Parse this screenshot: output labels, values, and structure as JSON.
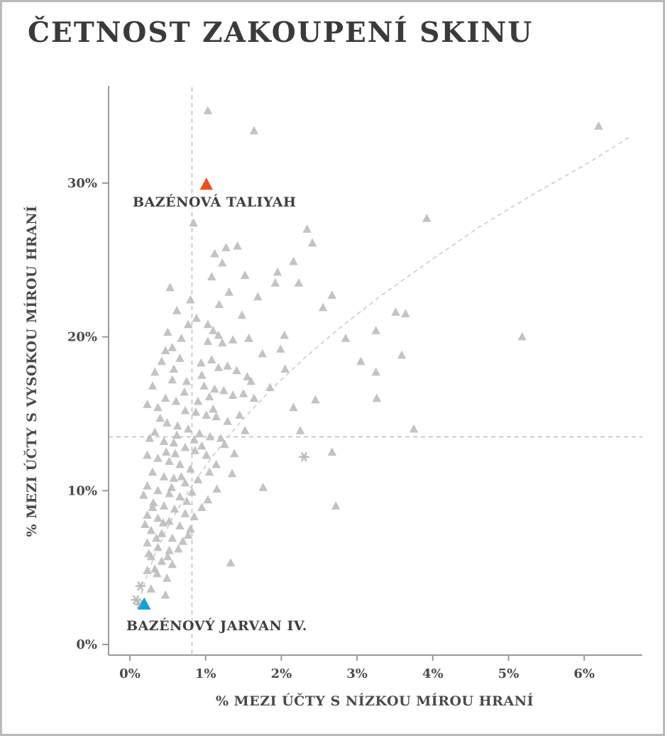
{
  "chart_data": {
    "type": "scatter",
    "title": "ČETNOST ZAKOUPENÍ SKINU",
    "xlabel": "% MEZI ÚČTY S NÍZKOU MÍROU HRANÍ",
    "ylabel": "% MEZI ÚČTY S VYSOKOU MÍROU HRANÍ",
    "xlim": [
      0,
      6.6
    ],
    "ylim": [
      0,
      35
    ],
    "x_tick_labels": [
      "0%",
      "1%",
      "2%",
      "3%",
      "4%",
      "5%",
      "6%"
    ],
    "x_tick_values": [
      0,
      1,
      2,
      3,
      4,
      5,
      6
    ],
    "y_tick_labels": [
      "0%",
      "10%",
      "20%",
      "30%"
    ],
    "y_tick_values": [
      0,
      10,
      20,
      30
    ],
    "grid": false,
    "marker": "triangle",
    "marker_color": "#bcbcbc",
    "axis_color": "#9a9a9a",
    "reference_lines": {
      "vertical_x": 0.82,
      "horizontal_y": 13.5,
      "style": "dashed",
      "color": "#bcbcbc"
    },
    "trend": {
      "style": "dashed",
      "color": "#cccccc",
      "points": [
        [
          0.12,
          2.8
        ],
        [
          0.2,
          4.1
        ],
        [
          0.35,
          6.1
        ],
        [
          0.55,
          8.1
        ],
        [
          0.8,
          10.2
        ],
        [
          1.1,
          12.3
        ],
        [
          1.45,
          14.4
        ],
        [
          1.85,
          16.5
        ],
        [
          2.3,
          18.6
        ],
        [
          2.8,
          20.7
        ],
        [
          3.35,
          22.8
        ],
        [
          3.95,
          24.9
        ],
        [
          4.6,
          27.1
        ],
        [
          5.3,
          29.2
        ],
        [
          6.05,
          31.3
        ],
        [
          6.6,
          33.0
        ]
      ]
    },
    "points": [
      [
        1.03,
        34.7
      ],
      [
        1.64,
        33.4
      ],
      [
        6.19,
        33.7
      ],
      [
        0.84,
        27.4
      ],
      [
        3.92,
        27.7
      ],
      [
        2.34,
        27.0
      ],
      [
        2.41,
        26.1
      ],
      [
        1.27,
        25.8
      ],
      [
        1.12,
        25.4
      ],
      [
        1.42,
        25.9
      ],
      [
        1.95,
        24.2
      ],
      [
        2.16,
        24.9
      ],
      [
        2.23,
        23.5
      ],
      [
        1.92,
        23.5
      ],
      [
        1.22,
        24.8
      ],
      [
        1.08,
        23.9
      ],
      [
        1.52,
        24.0
      ],
      [
        0.53,
        23.2
      ],
      [
        1.31,
        22.9
      ],
      [
        1.69,
        22.6
      ],
      [
        2.67,
        22.7
      ],
      [
        2.55,
        21.9
      ],
      [
        1.18,
        22.1
      ],
      [
        0.8,
        22.4
      ],
      [
        3.51,
        21.6
      ],
      [
        3.64,
        21.5
      ],
      [
        0.62,
        21.7
      ],
      [
        0.88,
        21.2
      ],
      [
        1.48,
        21.4
      ],
      [
        0.77,
        20.8
      ],
      [
        1.03,
        20.8
      ],
      [
        3.25,
        20.4
      ],
      [
        5.18,
        20.0
      ],
      [
        1.1,
        20.4
      ],
      [
        1.17,
        20.1
      ],
      [
        0.5,
        20.3
      ],
      [
        1.03,
        19.7
      ],
      [
        1.22,
        19.6
      ],
      [
        1.36,
        19.8
      ],
      [
        0.56,
        19.3
      ],
      [
        0.47,
        19.1
      ],
      [
        2.04,
        20.1
      ],
      [
        1.99,
        19.2
      ],
      [
        0.68,
        19.9
      ],
      [
        1.57,
        19.9
      ],
      [
        2.85,
        19.9
      ],
      [
        3.59,
        18.8
      ],
      [
        0.66,
        18.6
      ],
      [
        0.94,
        18.3
      ],
      [
        1.08,
        18.5
      ],
      [
        1.17,
        18.0
      ],
      [
        1.29,
        18.1
      ],
      [
        1.41,
        17.8
      ],
      [
        0.42,
        18.4
      ],
      [
        1.75,
        18.9
      ],
      [
        3.05,
        18.4
      ],
      [
        0.33,
        17.7
      ],
      [
        1.55,
        17.4
      ],
      [
        3.25,
        17.7
      ],
      [
        0.56,
        17.2
      ],
      [
        0.75,
        17.1
      ],
      [
        0.98,
        16.8
      ],
      [
        1.12,
        16.6
      ],
      [
        0.58,
        17.9
      ],
      [
        0.95,
        17.5
      ],
      [
        2.05,
        17.9
      ],
      [
        1.6,
        17.1
      ],
      [
        1.24,
        16.5
      ],
      [
        1.36,
        16.2
      ],
      [
        1.5,
        16.3
      ],
      [
        1.64,
        16.0
      ],
      [
        0.47,
        16.0
      ],
      [
        0.61,
        15.8
      ],
      [
        3.26,
        16.0
      ],
      [
        0.72,
        16.4
      ],
      [
        0.3,
        16.8
      ],
      [
        1.85,
        16.7
      ],
      [
        1.05,
        16.1
      ],
      [
        0.23,
        15.6
      ],
      [
        0.37,
        15.4
      ],
      [
        0.73,
        15.2
      ],
      [
        0.87,
        15.1
      ],
      [
        1.01,
        14.9
      ],
      [
        1.14,
        14.8
      ],
      [
        2.16,
        15.4
      ],
      [
        0.9,
        15.8
      ],
      [
        1.1,
        15.3
      ],
      [
        1.45,
        14.9
      ],
      [
        2.45,
        15.9
      ],
      [
        1.29,
        14.5
      ],
      [
        0.49,
        14.4
      ],
      [
        0.63,
        14.2
      ],
      [
        0.77,
        14.0
      ],
      [
        3.75,
        14.0
      ],
      [
        0.33,
        13.8
      ],
      [
        0.92,
        13.7
      ],
      [
        0.4,
        14.7
      ],
      [
        1.52,
        13.9
      ],
      [
        1.06,
        13.5
      ],
      [
        1.2,
        13.4
      ],
      [
        0.45,
        13.2
      ],
      [
        0.58,
        13.1
      ],
      [
        0.73,
        12.8
      ],
      [
        0.86,
        12.6
      ],
      [
        2.67,
        12.5
      ],
      [
        0.85,
        13.3
      ],
      [
        0.95,
        12.9
      ],
      [
        1.25,
        13.0
      ],
      [
        0.26,
        13.4
      ],
      [
        0.62,
        13.6
      ],
      [
        2.25,
        13.9
      ],
      [
        0.23,
        12.3
      ],
      [
        0.37,
        12.1
      ],
      [
        1.01,
        12.3
      ],
      [
        0.52,
        11.9
      ],
      [
        0.66,
        11.7
      ],
      [
        0.8,
        11.4
      ],
      [
        1.14,
        11.7
      ],
      [
        0.6,
        12.4
      ],
      [
        0.48,
        12.5
      ],
      [
        1.38,
        12.4
      ],
      [
        0.3,
        11.2
      ],
      [
        0.45,
        10.9
      ],
      [
        0.58,
        10.8
      ],
      [
        0.73,
        10.5
      ],
      [
        1.76,
        10.2
      ],
      [
        0.23,
        10.3
      ],
      [
        0.37,
        10.0
      ],
      [
        0.68,
        10.9
      ],
      [
        0.9,
        10.7
      ],
      [
        0.55,
        10.2
      ],
      [
        1.05,
        11.2
      ],
      [
        1.35,
        11.1
      ],
      [
        0.52,
        9.8
      ],
      [
        0.66,
        9.6
      ],
      [
        1.03,
        9.4
      ],
      [
        2.72,
        9.0
      ],
      [
        0.31,
        9.2
      ],
      [
        0.45,
        9.0
      ],
      [
        0.59,
        8.8
      ],
      [
        0.73,
        8.5
      ],
      [
        0.82,
        9.9
      ],
      [
        0.75,
        9.3
      ],
      [
        0.95,
        8.9
      ],
      [
        0.18,
        9.7
      ],
      [
        1.15,
        10.1
      ],
      [
        0.23,
        8.4
      ],
      [
        0.37,
        8.2
      ],
      [
        0.52,
        8.0
      ],
      [
        0.66,
        7.7
      ],
      [
        0.8,
        7.5
      ],
      [
        0.28,
        7.4
      ],
      [
        0.42,
        7.2
      ],
      [
        0.56,
        6.9
      ],
      [
        0.3,
        8.9
      ],
      [
        0.44,
        7.9
      ],
      [
        0.85,
        8.3
      ],
      [
        0.2,
        7.8
      ],
      [
        0.77,
        7.1
      ],
      [
        0.7,
        6.7
      ],
      [
        0.23,
        6.6
      ],
      [
        0.37,
        6.3
      ],
      [
        0.52,
        6.1
      ],
      [
        1.33,
        5.3
      ],
      [
        0.28,
        5.7
      ],
      [
        0.42,
        5.4
      ],
      [
        0.56,
        5.2
      ],
      [
        0.35,
        6.9
      ],
      [
        0.25,
        5.9
      ],
      [
        0.64,
        6.2
      ],
      [
        0.5,
        5.7
      ],
      [
        0.23,
        4.8
      ],
      [
        0.36,
        4.6
      ],
      [
        0.49,
        4.3
      ],
      [
        0.28,
        3.6
      ],
      [
        0.47,
        3.2
      ],
      [
        0.33,
        4.9
      ]
    ],
    "asterisk_points": [
      [
        2.3,
        12.2
      ],
      [
        0.14,
        3.8
      ],
      [
        0.08,
        2.9
      ],
      [
        0.13,
        2.6
      ]
    ],
    "highlights": [
      {
        "label": "BAZÉNOVÁ TALIYAH",
        "x": 1.01,
        "y": 29.9,
        "color": "#ea501d"
      },
      {
        "label": "BAZÉNOVÝ JARVAN IV.",
        "x": 0.19,
        "y": 2.6,
        "color": "#11a2d8"
      }
    ]
  }
}
